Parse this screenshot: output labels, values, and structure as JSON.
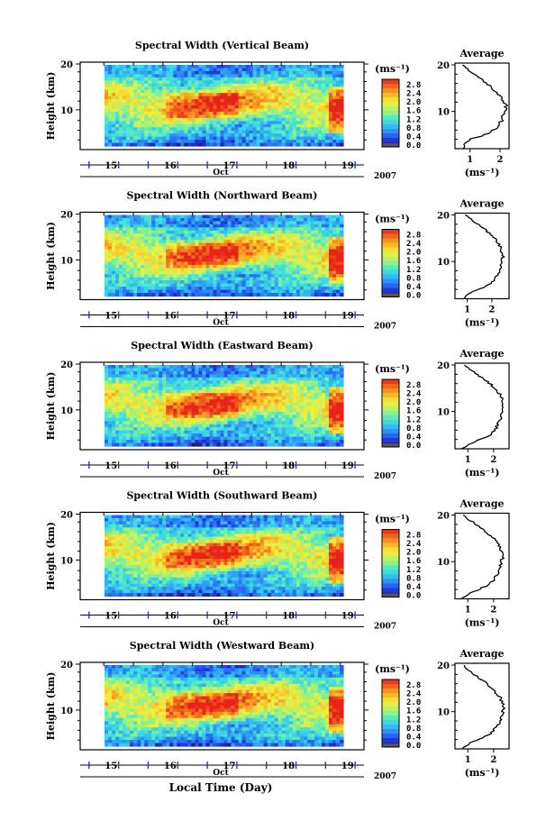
{
  "figure": {
    "xlabel": "Local Time (Day)",
    "colorbar_unit": "(ms⁻¹)",
    "colorbar_ticks": [
      "0.0",
      "0.4",
      "0.8",
      "1.2",
      "1.6",
      "2.0",
      "2.4",
      "2.8"
    ],
    "colorbar_range": [
      0,
      3.0
    ],
    "colors": {
      "scale": [
        "#1f1f7a",
        "#1c2fd6",
        "#2a64f0",
        "#2f9cf5",
        "#35d0f0",
        "#4fe8c9",
        "#8df08f",
        "#c9f05a",
        "#f3ef3b",
        "#f9c52a",
        "#f6921f",
        "#f05a1c",
        "#e8231a"
      ]
    }
  },
  "chart_data": [
    {
      "type": "heatmap",
      "title": "Spectral Width (Vertical Beam)",
      "ylabel": "Height (km)",
      "ylim": [
        2,
        20
      ],
      "yticks": [
        "20",
        "10"
      ],
      "xticks": [
        "15",
        "16",
        "17",
        "18",
        "19"
      ],
      "xlim": [
        14.6,
        19.4
      ],
      "month_label": "Oct",
      "year_label": "2007",
      "colorbar_ticks": [
        "0.0",
        "0.4",
        "0.8",
        "1.2",
        "1.6",
        "2.0",
        "2.4",
        "2.8"
      ],
      "profile": {
        "title": "Average",
        "xticks": [
          "1",
          "2"
        ],
        "xlim": [
          0.5,
          2.3
        ],
        "xlabel": "(ms⁻¹)",
        "height_km": [
          2,
          3,
          4,
          5,
          6,
          7,
          8,
          9,
          10,
          11,
          12,
          13,
          14,
          15,
          16,
          17,
          18,
          19,
          20
        ],
        "value": [
          0.75,
          0.85,
          1.0,
          1.5,
          1.8,
          1.95,
          2.05,
          2.1,
          2.15,
          2.2,
          2.15,
          2.05,
          1.9,
          1.75,
          1.55,
          1.35,
          1.15,
          0.95,
          0.8
        ]
      }
    },
    {
      "type": "heatmap",
      "title": "Spectral Width (Northward Beam)",
      "ylabel": "Height (km)",
      "ylim": [
        2,
        20
      ],
      "yticks": [
        "20",
        "10"
      ],
      "xticks": [
        "15",
        "16",
        "17",
        "18",
        "19"
      ],
      "xlim": [
        14.6,
        19.4
      ],
      "month_label": "Oct",
      "year_label": "2007",
      "colorbar_ticks": [
        "0.0",
        "0.4",
        "0.8",
        "1.2",
        "1.6",
        "2.0",
        "2.4",
        "2.8"
      ],
      "profile": {
        "title": "Average",
        "xticks": [
          "1",
          "2"
        ],
        "xlim": [
          0.5,
          2.7
        ],
        "xlabel": "(ms⁻¹)",
        "height_km": [
          2,
          3,
          4,
          5,
          6,
          7,
          8,
          9,
          10,
          11,
          12,
          13,
          14,
          15,
          16,
          17,
          18,
          19,
          20
        ],
        "value": [
          0.8,
          1.0,
          1.5,
          1.9,
          2.1,
          2.2,
          2.3,
          2.35,
          2.4,
          2.45,
          2.4,
          2.35,
          2.25,
          2.1,
          1.9,
          1.7,
          1.45,
          1.2,
          0.9
        ]
      }
    },
    {
      "type": "heatmap",
      "title": "Spectral Width (Eastward Beam)",
      "ylabel": "Height (km)",
      "ylim": [
        2,
        20
      ],
      "yticks": [
        "20",
        "10"
      ],
      "xticks": [
        "15",
        "16",
        "17",
        "18",
        "19"
      ],
      "xlim": [
        14.6,
        19.4
      ],
      "month_label": "Oct",
      "year_label": "2007",
      "colorbar_ticks": [
        "0.0",
        "0.4",
        "0.8",
        "1.2",
        "1.6",
        "2.0",
        "2.4",
        "2.8"
      ],
      "profile": {
        "title": "Average",
        "xticks": [
          "1",
          "2"
        ],
        "xlim": [
          0.5,
          2.6
        ],
        "xlabel": "(ms⁻¹)",
        "height_km": [
          2,
          3,
          4,
          5,
          6,
          7,
          8,
          9,
          10,
          11,
          12,
          13,
          14,
          15,
          16,
          17,
          18,
          19,
          20
        ],
        "value": [
          0.8,
          1.0,
          1.5,
          1.85,
          2.05,
          2.15,
          2.25,
          2.3,
          2.35,
          2.4,
          2.35,
          2.3,
          2.2,
          2.05,
          1.85,
          1.6,
          1.35,
          1.1,
          0.85
        ]
      }
    },
    {
      "type": "heatmap",
      "title": "Spectral Width (Southward Beam)",
      "ylabel": "Height (km)",
      "ylim": [
        2,
        20
      ],
      "yticks": [
        "20",
        "10"
      ],
      "xticks": [
        "15",
        "16",
        "17",
        "18",
        "19"
      ],
      "xlim": [
        14.6,
        19.4
      ],
      "month_label": "Oct",
      "year_label": "2007",
      "colorbar_ticks": [
        "0.0",
        "0.4",
        "0.8",
        "1.2",
        "1.6",
        "2.0",
        "2.4",
        "2.8"
      ],
      "profile": {
        "title": "Average",
        "xticks": [
          "1",
          "2"
        ],
        "xlim": [
          0.5,
          2.6
        ],
        "xlabel": "(ms⁻¹)",
        "height_km": [
          2,
          3,
          4,
          5,
          6,
          7,
          8,
          9,
          10,
          11,
          12,
          13,
          14,
          15,
          16,
          17,
          18,
          19,
          20
        ],
        "value": [
          0.8,
          1.0,
          1.4,
          1.8,
          2.0,
          2.1,
          2.2,
          2.25,
          2.3,
          2.35,
          2.3,
          2.25,
          2.15,
          2.0,
          1.8,
          1.55,
          1.3,
          1.05,
          0.85
        ]
      }
    },
    {
      "type": "heatmap",
      "title": "Spectral Width (Westward Beam)",
      "ylabel": "Height (km)",
      "ylim": [
        2,
        20
      ],
      "yticks": [
        "20",
        "10"
      ],
      "xticks": [
        "15",
        "16",
        "17",
        "18",
        "19"
      ],
      "xlim": [
        14.6,
        19.4
      ],
      "month_label": "Oct",
      "year_label": "2007",
      "colorbar_ticks": [
        "0.0",
        "0.4",
        "0.8",
        "1.2",
        "1.6",
        "2.0",
        "2.4",
        "2.8"
      ],
      "profile": {
        "title": "Average",
        "xticks": [
          "1",
          "2"
        ],
        "xlim": [
          0.5,
          2.6
        ],
        "xlabel": "(ms⁻¹)",
        "height_km": [
          2,
          3,
          4,
          5,
          6,
          7,
          8,
          9,
          10,
          11,
          12,
          13,
          14,
          15,
          16,
          17,
          18,
          19,
          20
        ],
        "value": [
          0.8,
          1.0,
          1.4,
          1.8,
          2.0,
          2.15,
          2.25,
          2.3,
          2.35,
          2.4,
          2.35,
          2.25,
          2.1,
          1.95,
          1.75,
          1.5,
          1.25,
          1.0,
          0.85
        ]
      }
    }
  ]
}
